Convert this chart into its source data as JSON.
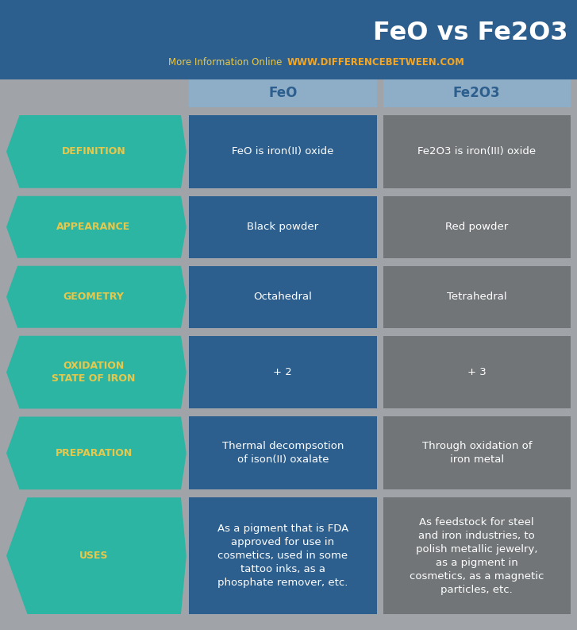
{
  "title": "FeO vs Fe2O3",
  "subtitle_left": "More Information Online",
  "subtitle_right": "WWW.DIFFERENCEBETWEEN.COM",
  "col1_header": "FeO",
  "col2_header": "Fe2O3",
  "bg_color": "#a0a3a8",
  "header_bg_color": "#2d5f8e",
  "col_header_bg": "#8eadc7",
  "arrow_color": "#2db5a3",
  "cell1_color": "#2d5f8e",
  "cell2_color": "#717577",
  "text_white": "#ffffff",
  "text_yellow": "#e8c84a",
  "text_orange": "#f5a623",
  "title_color": "#ffffff",
  "col_header_text": "#2d5f8e",
  "fig_w": 7.27,
  "fig_h": 7.93,
  "dpi": 100,
  "rows": [
    {
      "label": "DEFINITION",
      "col1": "FeO is iron(II) oxide",
      "col2": "Fe2O3 is iron(III) oxide"
    },
    {
      "label": "APPEARANCE",
      "col1": "Black powder",
      "col2": "Red powder"
    },
    {
      "label": "GEOMETRY",
      "col1": "Octahedral",
      "col2": "Tetrahedral"
    },
    {
      "label": "OXIDATION\nSTATE OF IRON",
      "col1": "+ 2",
      "col2": "+ 3"
    },
    {
      "label": "PREPARATION",
      "col1": "Thermal decompsotion\nof ison(II) oxalate",
      "col2": "Through oxidation of\niron metal"
    },
    {
      "label": "USES",
      "col1": "As a pigment that is FDA\napproved for use in\ncosmetics, used in some\ntattoo inks, as a\nphosphate remover, etc.",
      "col2": "As feedstock for steel\nand iron industries, to\npolish metallic jewelry,\nas a pigment in\ncosmetics, as a magnetic\nparticles, etc."
    }
  ]
}
